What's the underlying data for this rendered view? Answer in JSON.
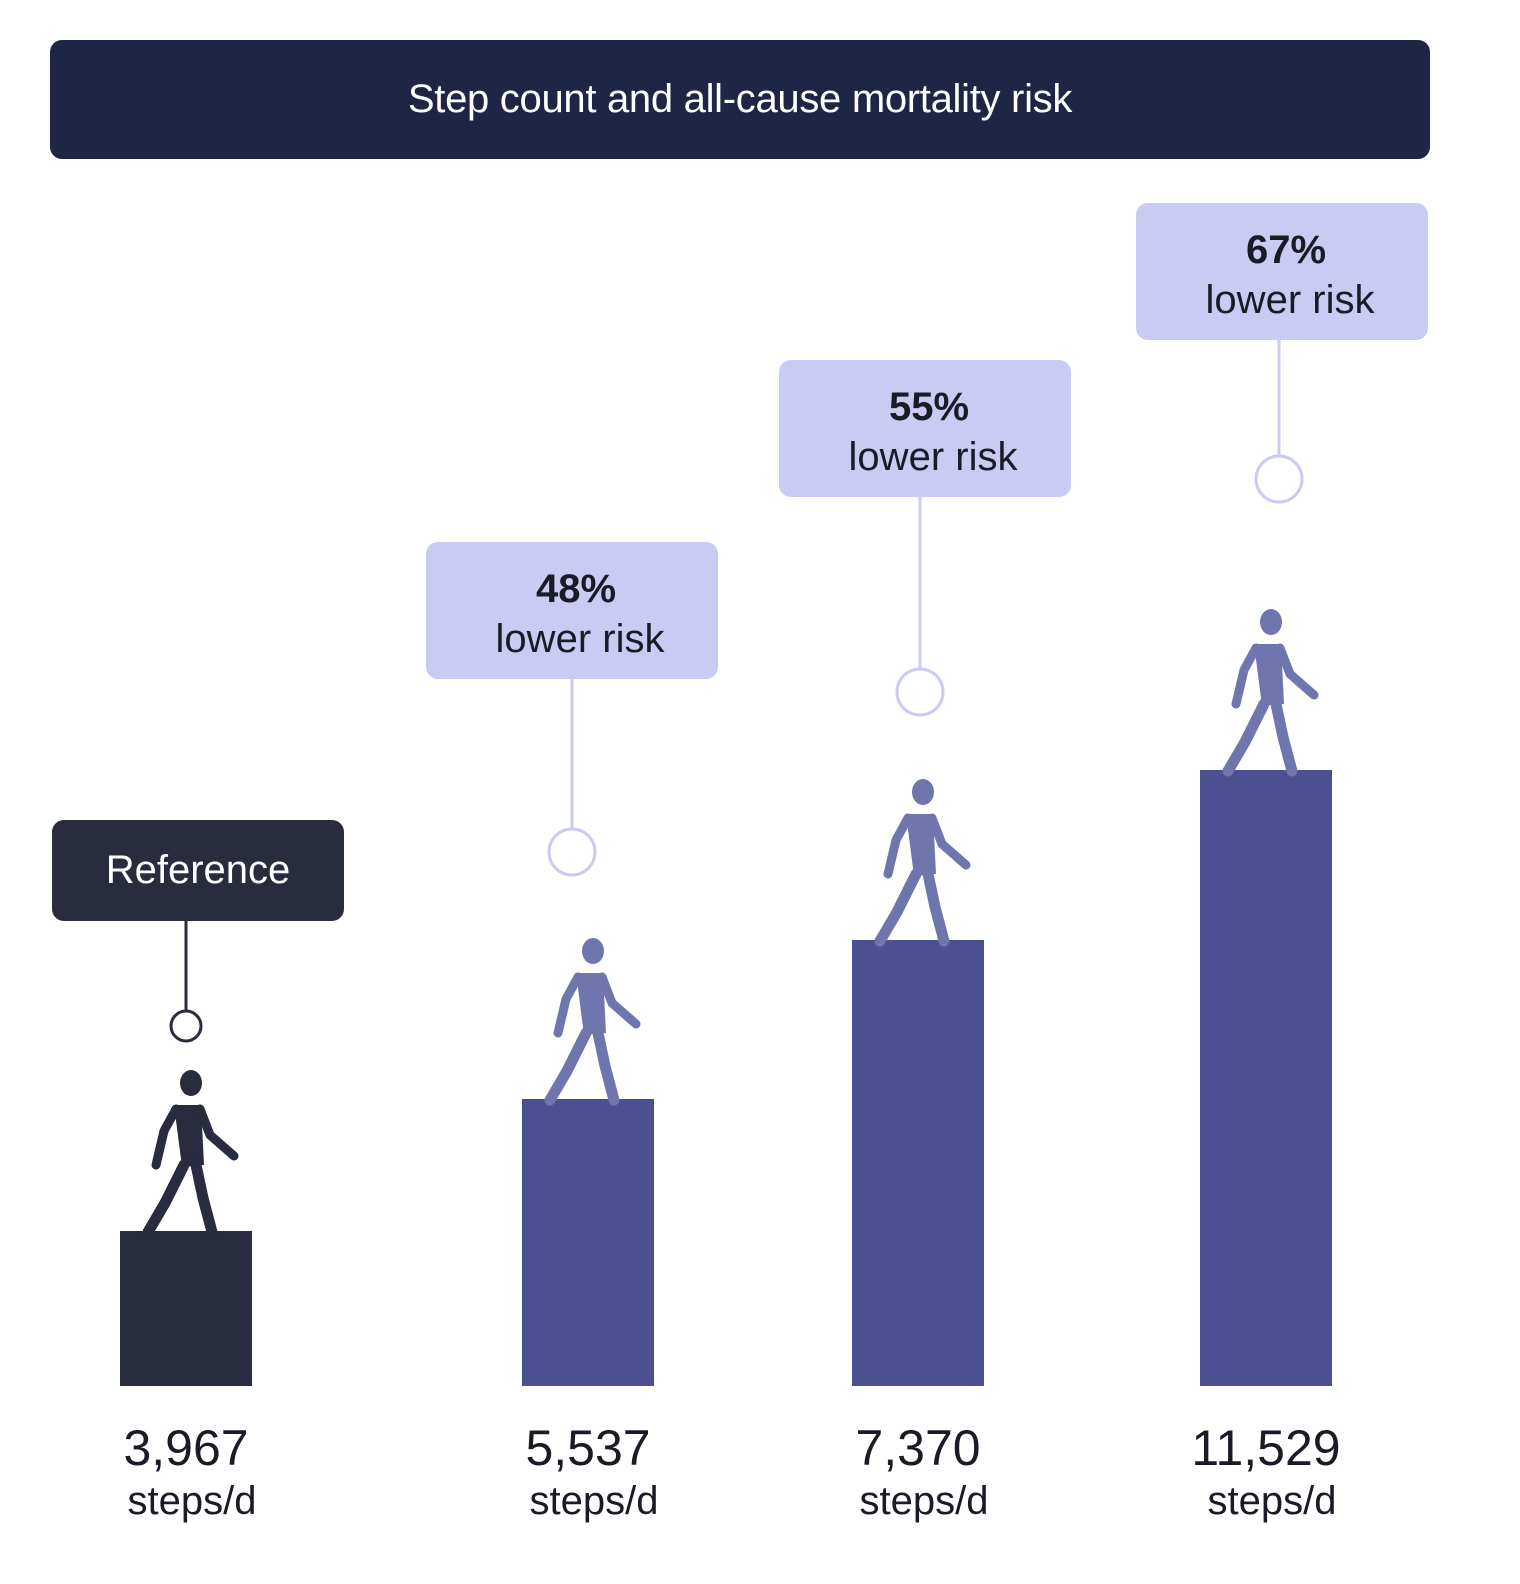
{
  "title": "Step count and all-cause mortality risk",
  "colors": {
    "title_bg": "#1f2645",
    "reference_bar": "#292b3f",
    "reference_walker": "#292b3f",
    "bar": "#4b5090",
    "walker": "#6f76ad",
    "risk_box": "#c9cbf3",
    "risk_line": "#c9cbf3",
    "reference_box": "#292b3f"
  },
  "chart_data": {
    "type": "bar",
    "title": "Step count and all-cause mortality risk",
    "categories": [
      "3,967",
      "5,537",
      "7,370",
      "11,529"
    ],
    "unit_label": "steps/d",
    "values": [
      3967,
      5537,
      7370,
      11529
    ],
    "annotations": [
      {
        "kind": "reference",
        "text": "Reference"
      },
      {
        "kind": "risk",
        "percent": "48%",
        "text": "lower risk"
      },
      {
        "kind": "risk",
        "percent": "55%",
        "text": "lower risk"
      },
      {
        "kind": "risk",
        "percent": "67%",
        "text": "lower risk"
      }
    ],
    "icon": "walking-person-icon",
    "xlabel": "",
    "ylabel": "",
    "grid": false
  }
}
